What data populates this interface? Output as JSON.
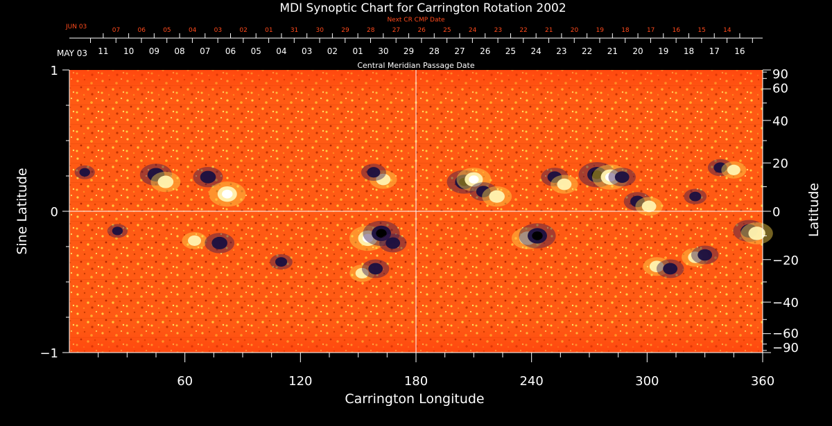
{
  "colors": {
    "background": "#000000",
    "axes": "#ffffff",
    "text": "#ffffff",
    "next_cr": "#ff4a1c",
    "map_base": "#ff5a14",
    "map_bright": "#fff3b0",
    "map_dark": "#1a1040"
  },
  "chart_data": {
    "type": "heatmap",
    "title": "MDI Synoptic Chart for Carrington Rotation 2002",
    "xlabel": "Carrington Longitude",
    "ylabel_left": "Sine Latitude",
    "ylabel_right": "Latitude",
    "xlim": [
      0,
      360
    ],
    "ylim_sine": [
      -1,
      1
    ],
    "x_ticks": [
      60,
      120,
      180,
      240,
      300,
      360
    ],
    "x_minor_step": 15,
    "left_ticks": [
      {
        "value": 1,
        "label": "1"
      },
      {
        "value": 0,
        "label": "0"
      },
      {
        "value": -1,
        "label": "−1"
      }
    ],
    "left_minor_step": 0.25,
    "right_ticks": [
      {
        "lat": 90,
        "label": "90"
      },
      {
        "lat": 60,
        "label": "60"
      },
      {
        "lat": 40,
        "label": "40"
      },
      {
        "lat": 20,
        "label": "20"
      },
      {
        "lat": 0,
        "label": "0"
      },
      {
        "lat": -20,
        "label": "−20"
      },
      {
        "lat": -40,
        "label": "−40"
      },
      {
        "lat": -60,
        "label": "−60"
      },
      {
        "lat": -90,
        "label": "−90"
      }
    ],
    "right_minor_lats": [
      -80,
      -70,
      -50,
      -30,
      -10,
      10,
      30,
      50,
      70,
      80
    ],
    "reference_lines": {
      "equator_lat": 0,
      "central_longitude": 180
    },
    "cmp_axis": {
      "label": "Central Meridian Passage Date",
      "month_label": "MAY 03",
      "dates": [
        "11",
        "10",
        "09",
        "08",
        "07",
        "06",
        "05",
        "04",
        "03",
        "02",
        "01",
        "30",
        "29",
        "28",
        "27",
        "26",
        "25",
        "24",
        "23",
        "22",
        "21",
        "20",
        "19",
        "18",
        "17",
        "16"
      ],
      "date_start_lon": 17.6,
      "date_step_lon": 13.22
    },
    "next_cr_axis": {
      "label": "Next CR CMP Date",
      "month_label": "JUN 03",
      "dates": [
        "07",
        "06",
        "05",
        "04",
        "03",
        "02",
        "01",
        "31",
        "30",
        "29",
        "28",
        "27",
        "26",
        "25",
        "24",
        "23",
        "22",
        "21",
        "20",
        "19",
        "18",
        "17",
        "16",
        "15",
        "14"
      ],
      "date_start_lon": 24.3,
      "date_step_lon": 13.22
    },
    "active_regions": [
      {
        "lon": 45,
        "lat": 15,
        "polarity": "negative",
        "strength": 0.8
      },
      {
        "lon": 50,
        "lat": 12,
        "polarity": "positive",
        "strength": 0.7
      },
      {
        "lon": 72,
        "lat": 14,
        "polarity": "negative",
        "strength": 0.7
      },
      {
        "lon": 82,
        "lat": 7,
        "polarity": "positive",
        "strength": 1.0
      },
      {
        "lon": 65,
        "lat": -12,
        "polarity": "positive",
        "strength": 0.5
      },
      {
        "lon": 78,
        "lat": -13,
        "polarity": "negative",
        "strength": 0.7
      },
      {
        "lon": 155,
        "lat": -11,
        "polarity": "positive",
        "strength": 1.0
      },
      {
        "lon": 162,
        "lat": -9,
        "polarity": "negative",
        "strength": 1.0
      },
      {
        "lon": 168,
        "lat": -13,
        "polarity": "negative",
        "strength": 0.6
      },
      {
        "lon": 163,
        "lat": 13,
        "polarity": "positive",
        "strength": 0.6
      },
      {
        "lon": 158,
        "lat": 16,
        "polarity": "negative",
        "strength": 0.5
      },
      {
        "lon": 152,
        "lat": -26,
        "polarity": "positive",
        "strength": 0.5
      },
      {
        "lon": 159,
        "lat": -24,
        "polarity": "negative",
        "strength": 0.6
      },
      {
        "lon": 205,
        "lat": 12,
        "polarity": "negative",
        "strength": 0.9
      },
      {
        "lon": 210,
        "lat": 13,
        "polarity": "positive",
        "strength": 0.9
      },
      {
        "lon": 215,
        "lat": 8,
        "polarity": "negative",
        "strength": 0.6
      },
      {
        "lon": 222,
        "lat": 6,
        "polarity": "positive",
        "strength": 0.7
      },
      {
        "lon": 238,
        "lat": -11,
        "polarity": "positive",
        "strength": 0.8
      },
      {
        "lon": 243,
        "lat": -10,
        "polarity": "negative",
        "strength": 1.0
      },
      {
        "lon": 252,
        "lat": 14,
        "polarity": "negative",
        "strength": 0.6
      },
      {
        "lon": 257,
        "lat": 11,
        "polarity": "positive",
        "strength": 0.6
      },
      {
        "lon": 274,
        "lat": 15,
        "polarity": "negative",
        "strength": 1.0
      },
      {
        "lon": 281,
        "lat": 14,
        "polarity": "positive",
        "strength": 1.0
      },
      {
        "lon": 287,
        "lat": 14,
        "polarity": "negative",
        "strength": 0.6
      },
      {
        "lon": 295,
        "lat": 4,
        "polarity": "negative",
        "strength": 0.6
      },
      {
        "lon": 301,
        "lat": 2,
        "polarity": "positive",
        "strength": 0.6
      },
      {
        "lon": 305,
        "lat": -23,
        "polarity": "positive",
        "strength": 0.6
      },
      {
        "lon": 312,
        "lat": -24,
        "polarity": "negative",
        "strength": 0.6
      },
      {
        "lon": 325,
        "lat": -19,
        "polarity": "positive",
        "strength": 0.6
      },
      {
        "lon": 330,
        "lat": -18,
        "polarity": "negative",
        "strength": 0.6
      },
      {
        "lon": 325,
        "lat": 6,
        "polarity": "negative",
        "strength": 0.4
      },
      {
        "lon": 338,
        "lat": 18,
        "polarity": "negative",
        "strength": 0.5
      },
      {
        "lon": 345,
        "lat": 17,
        "polarity": "positive",
        "strength": 0.5
      },
      {
        "lon": 353,
        "lat": -8,
        "polarity": "negative",
        "strength": 0.8
      },
      {
        "lon": 357,
        "lat": -9,
        "polarity": "positive",
        "strength": 0.8
      },
      {
        "lon": 8,
        "lat": 16,
        "polarity": "negative",
        "strength": 0.3
      },
      {
        "lon": 25,
        "lat": -8,
        "polarity": "negative",
        "strength": 0.3
      },
      {
        "lon": 110,
        "lat": -21,
        "polarity": "negative",
        "strength": 0.4
      }
    ]
  }
}
